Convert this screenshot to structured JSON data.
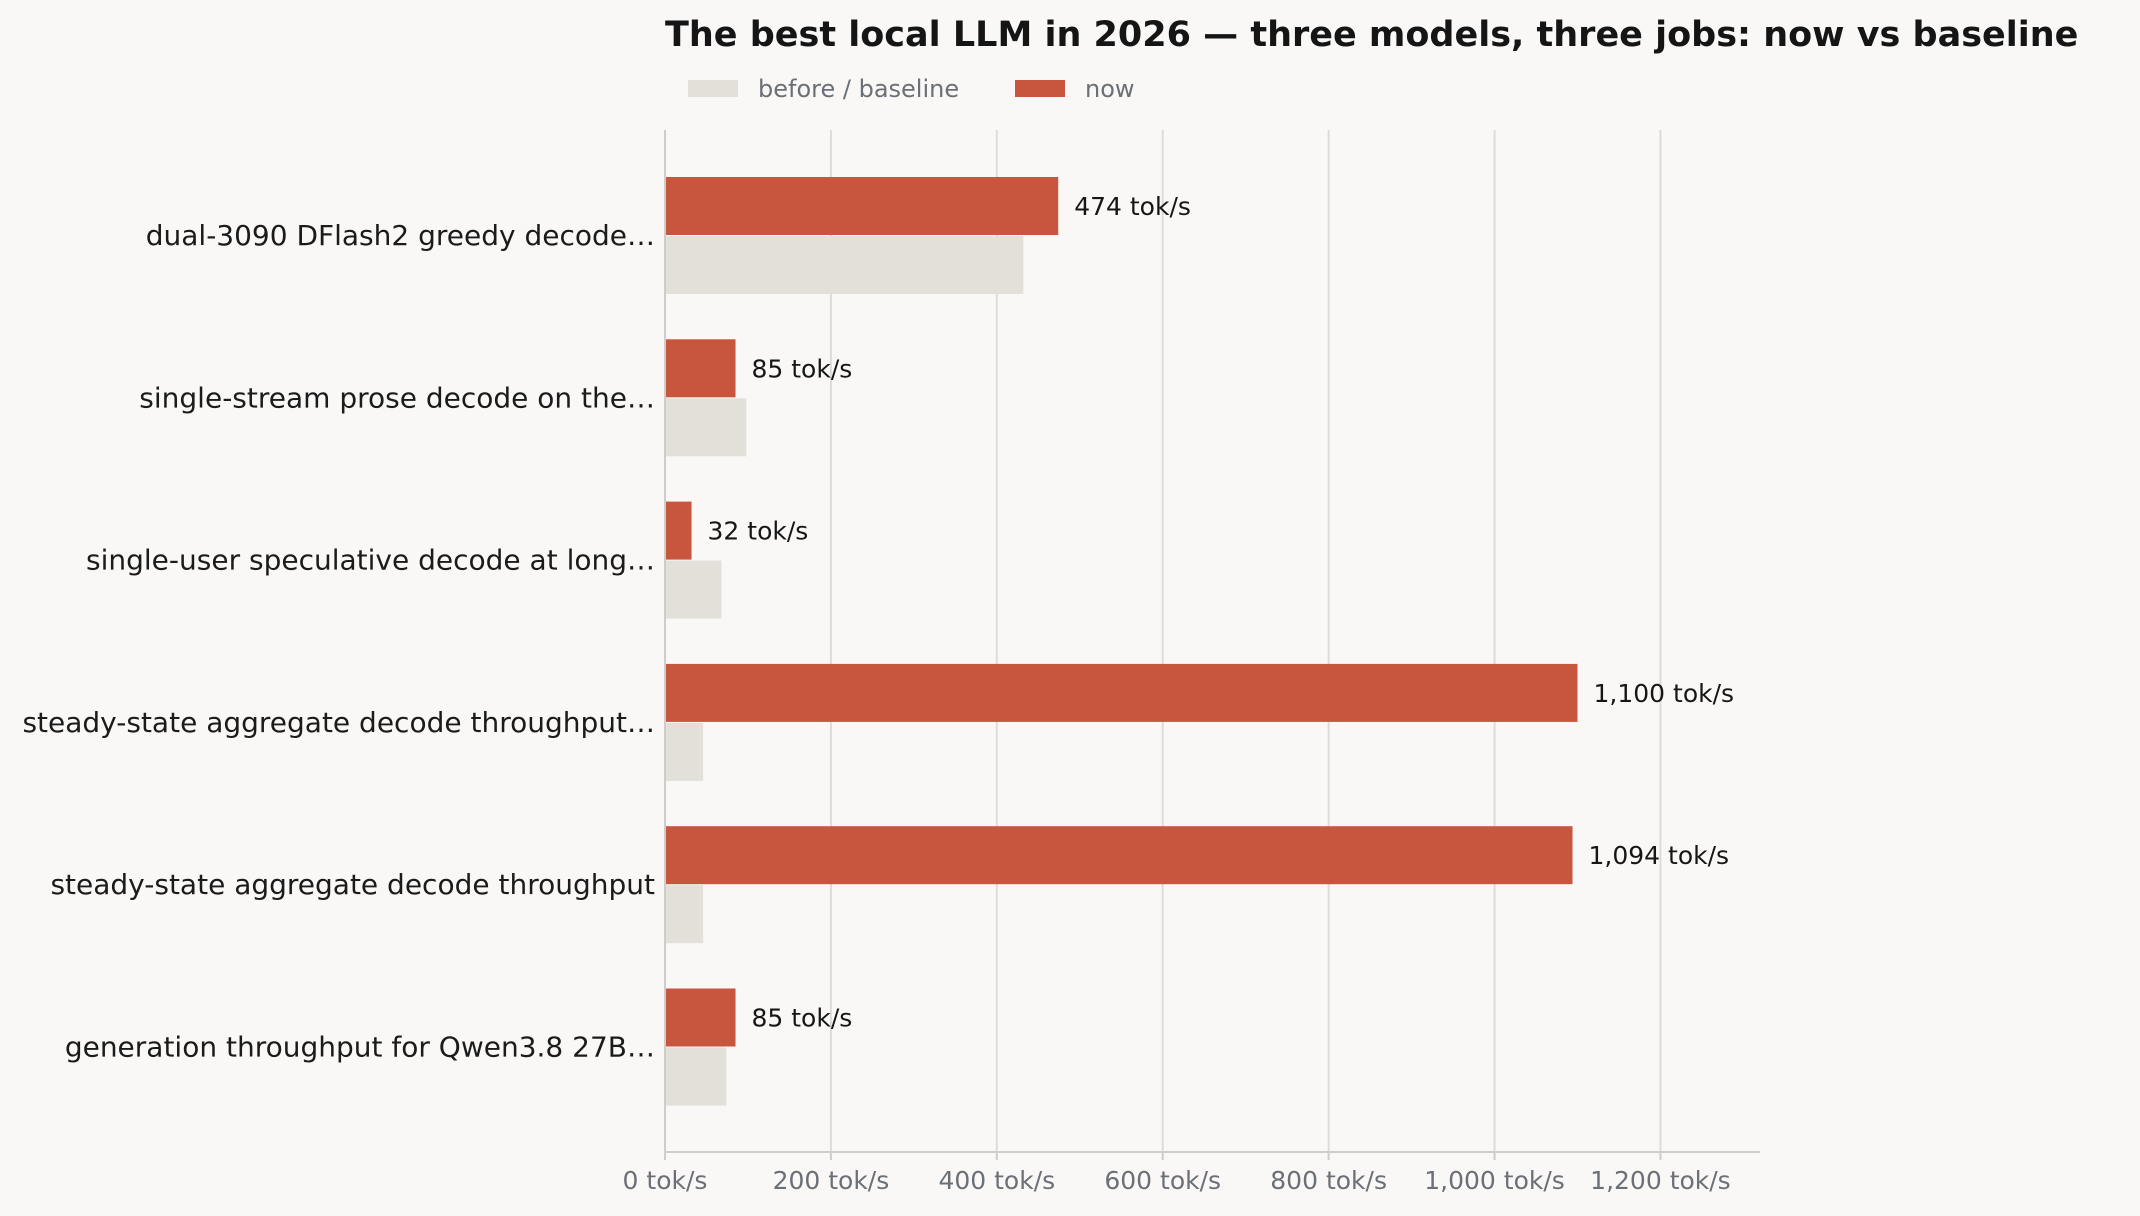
{
  "chart_data": {
    "type": "bar",
    "orientation": "horizontal",
    "title": "The best local LLM in 2026 — three models, three jobs: now vs baseline",
    "legend_placement": "top",
    "grid": "vertical",
    "x_unit": " tok/s",
    "xlim": [
      0,
      1320
    ],
    "x_ticks": [
      0,
      200,
      400,
      600,
      800,
      1000,
      1200
    ],
    "x_tick_labels": [
      "0 tok/s",
      "200 tok/s",
      "400 tok/s",
      "600 tok/s",
      "800 tok/s",
      "1,000 tok/s",
      "1,200 tok/s"
    ],
    "categories": [
      "dual-3090 DFlash2 greedy decode…",
      "single-stream prose decode on the…",
      "single-user speculative decode at long…",
      "steady-state aggregate decode throughput…",
      "steady-state aggregate decode throughput",
      "generation throughput for Qwen3.8 27B…"
    ],
    "series": [
      {
        "name": "before / baseline",
        "color": "#e3e0da",
        "values": [
          432,
          98,
          68,
          46,
          46,
          74
        ]
      },
      {
        "name": "now",
        "color": "#c8553d",
        "values": [
          474,
          85,
          32,
          1100,
          1094,
          85
        ],
        "value_labels": [
          "474 tok/s",
          "85 tok/s",
          "32 tok/s",
          "1,100 tok/s",
          "1,094 tok/s",
          "85 tok/s"
        ]
      }
    ]
  }
}
